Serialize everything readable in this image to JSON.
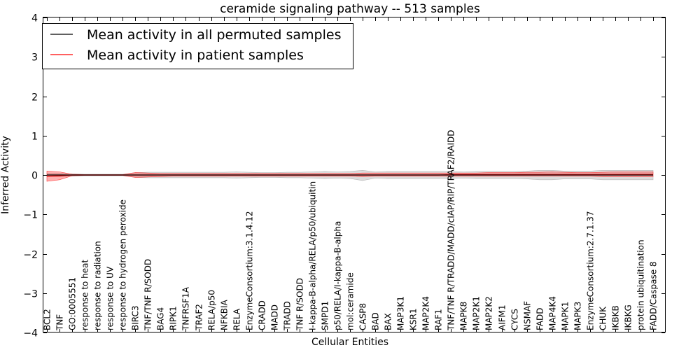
{
  "chart_data": {
    "type": "line",
    "title": "ceramide signaling pathway -- 513 samples",
    "xlabel": "Cellular Entities",
    "ylabel": "Inferred Activity",
    "ylim": [
      -4,
      4
    ],
    "yticks": [
      -4,
      -3,
      -2,
      -1,
      0,
      1,
      2,
      3,
      4
    ],
    "ytick_labels": [
      "−4",
      "−3",
      "−2",
      "−1",
      "0",
      "1",
      "2",
      "3",
      "4"
    ],
    "legend_position": "top-left",
    "categories": [
      "BCL2",
      "TNF",
      "GO:0005551",
      "response to heat",
      "response to radiation",
      "response to UV",
      "response to hydrogen peroxide",
      "BIRC3",
      "TNF/TNF R/SODD",
      "BAG4",
      "RIPK1",
      "TNFRSF1A",
      "TRAF2",
      "RELA/p50",
      "NFKBIA",
      "RELA",
      "EnzymeConsortium:3.1.4.12",
      "CRADD",
      "MADD",
      "TRADD",
      "TNF R/SODD",
      "I-kappa-B-alpha/RELA/p50/ubiquitin",
      "SMPD1",
      "p50/RELA/I-kappa-B-alpha",
      "mol:ceramide",
      "CASP8",
      "BAD",
      "BAX",
      "MAP3K1",
      "KSR1",
      "MAP2K4",
      "RAF1",
      "TNF/TNF R/TRADD/MADD/cIAP/RIP/TRAF2/RAIDD",
      "MAPK8",
      "MAP2K1",
      "MAP2K2",
      "AIFM1",
      "CYCS",
      "NSMAF",
      "FADD",
      "MAP4K4",
      "MAPK1",
      "MAPK3",
      "EnzymeConsortium:2.7.1.37",
      "CHUK",
      "IKBKB",
      "IKBKG",
      "protein ubiquitination",
      "FADD/Caspase 8"
    ],
    "series": [
      {
        "name": "Mean activity in all permuted samples",
        "color": "#000000",
        "values": [
          0,
          0,
          0,
          0,
          0,
          0,
          0,
          0,
          0,
          0,
          0,
          0,
          0,
          0,
          0,
          0,
          0,
          0,
          0,
          0,
          0,
          0,
          0,
          0,
          0,
          0,
          0,
          0,
          0,
          0,
          0,
          0,
          0,
          0,
          0,
          0,
          0,
          0,
          0,
          0,
          0,
          0,
          0,
          0,
          0,
          0,
          0,
          0,
          0
        ],
        "band_lower": [
          -0.04,
          -0.04,
          -0.03,
          -0.02,
          -0.02,
          -0.02,
          -0.02,
          -0.06,
          -0.07,
          -0.07,
          -0.07,
          -0.07,
          -0.07,
          -0.07,
          -0.07,
          -0.08,
          -0.07,
          -0.06,
          -0.06,
          -0.07,
          -0.07,
          -0.08,
          -0.09,
          -0.08,
          -0.09,
          -0.14,
          -0.08,
          -0.09,
          -0.09,
          -0.09,
          -0.09,
          -0.09,
          -0.09,
          -0.08,
          -0.09,
          -0.09,
          -0.09,
          -0.09,
          -0.1,
          -0.12,
          -0.12,
          -0.1,
          -0.1,
          -0.1,
          -0.12,
          -0.12,
          -0.12,
          -0.12,
          -0.12
        ],
        "band_upper": [
          0.04,
          0.04,
          0.03,
          0.02,
          0.02,
          0.02,
          0.02,
          0.06,
          0.07,
          0.07,
          0.07,
          0.07,
          0.07,
          0.07,
          0.07,
          0.08,
          0.07,
          0.06,
          0.06,
          0.07,
          0.07,
          0.08,
          0.09,
          0.08,
          0.09,
          0.12,
          0.08,
          0.09,
          0.09,
          0.09,
          0.09,
          0.09,
          0.09,
          0.08,
          0.09,
          0.09,
          0.09,
          0.09,
          0.1,
          0.12,
          0.12,
          0.1,
          0.1,
          0.1,
          0.12,
          0.12,
          0.12,
          0.12,
          0.12
        ]
      },
      {
        "name": "Mean activity in patient samples",
        "color": "#ff0000",
        "values": [
          -0.03,
          -0.02,
          0,
          0,
          0,
          0,
          0,
          0,
          0,
          0,
          0,
          0,
          0,
          0,
          0,
          0,
          0,
          0,
          0,
          0,
          0,
          0,
          0,
          0,
          0,
          0,
          0,
          0,
          0,
          0,
          0,
          0,
          0.01,
          0.01,
          0.01,
          0.01,
          0.01,
          0.01,
          0.01,
          0.01,
          0.01,
          0.01,
          0.01,
          0.01,
          0.01,
          0.01,
          0.01,
          0.01,
          0.01
        ],
        "band_lower": [
          -0.16,
          -0.12,
          -0.02,
          -0.01,
          -0.01,
          -0.01,
          -0.01,
          -0.06,
          -0.05,
          -0.04,
          -0.03,
          -0.03,
          -0.03,
          -0.03,
          -0.03,
          -0.03,
          -0.03,
          -0.03,
          -0.03,
          -0.03,
          -0.03,
          -0.03,
          -0.03,
          -0.03,
          -0.03,
          -0.04,
          -0.03,
          -0.03,
          -0.03,
          -0.03,
          -0.03,
          -0.03,
          -0.03,
          -0.03,
          -0.03,
          -0.03,
          -0.03,
          -0.03,
          -0.03,
          -0.03,
          -0.03,
          -0.03,
          -0.03,
          -0.03,
          -0.04,
          -0.04,
          -0.04,
          -0.04,
          -0.04
        ],
        "band_upper": [
          0.1,
          0.08,
          0.02,
          0.01,
          0.01,
          0.01,
          0.01,
          0.06,
          0.05,
          0.04,
          0.04,
          0.04,
          0.04,
          0.04,
          0.04,
          0.04,
          0.04,
          0.04,
          0.04,
          0.04,
          0.04,
          0.04,
          0.04,
          0.04,
          0.04,
          0.05,
          0.05,
          0.05,
          0.05,
          0.05,
          0.05,
          0.05,
          0.05,
          0.05,
          0.05,
          0.06,
          0.06,
          0.06,
          0.07,
          0.07,
          0.08,
          0.07,
          0.06,
          0.06,
          0.07,
          0.08,
          0.08,
          0.08,
          0.08
        ]
      }
    ]
  }
}
